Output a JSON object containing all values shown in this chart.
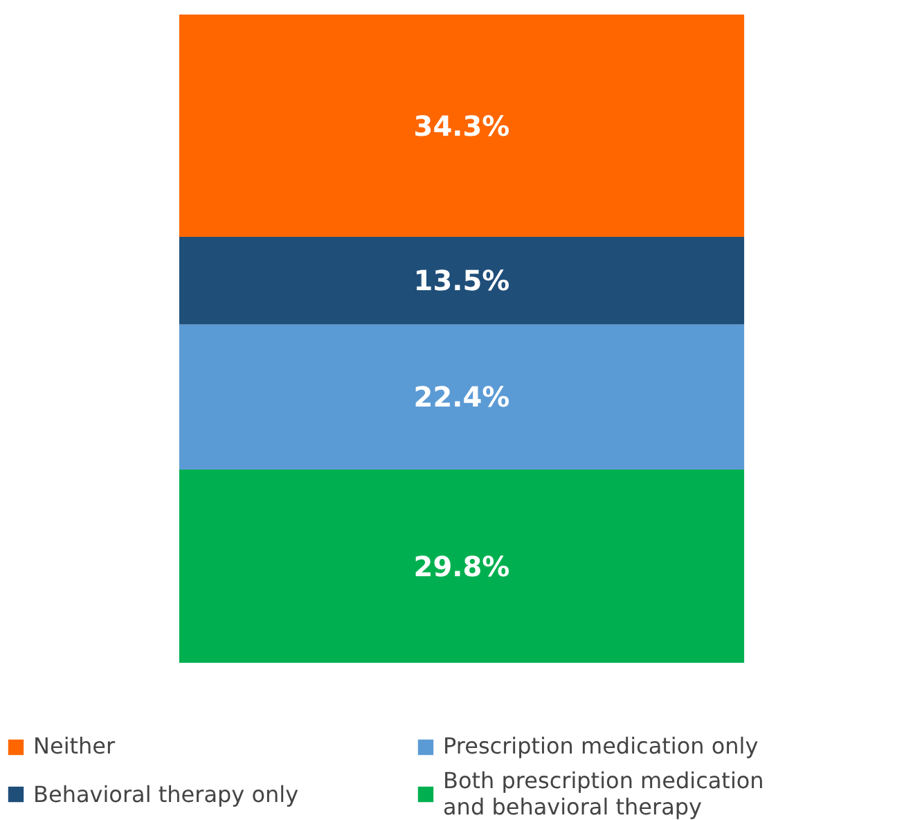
{
  "chart_data": {
    "type": "bar",
    "stacked": true,
    "categories": [
      null
    ],
    "legend": "bottom",
    "series": [
      {
        "name": "Both prescription medication and behavioral therapy",
        "color": "#00b050",
        "values": [
          29.8
        ],
        "value_labels": [
          "29.8%"
        ]
      },
      {
        "name": "Prescription medication only",
        "color": "#5b9bd5",
        "values": [
          22.4
        ],
        "value_labels": [
          "22.4%"
        ]
      },
      {
        "name": "Behavioral therapy only",
        "color": "#1f4e79",
        "values": [
          13.5
        ],
        "value_labels": [
          "13.5%"
        ]
      },
      {
        "name": "Neither",
        "color": "#ff6600",
        "values": [
          34.3
        ],
        "value_labels": [
          "34.3%"
        ]
      }
    ]
  }
}
